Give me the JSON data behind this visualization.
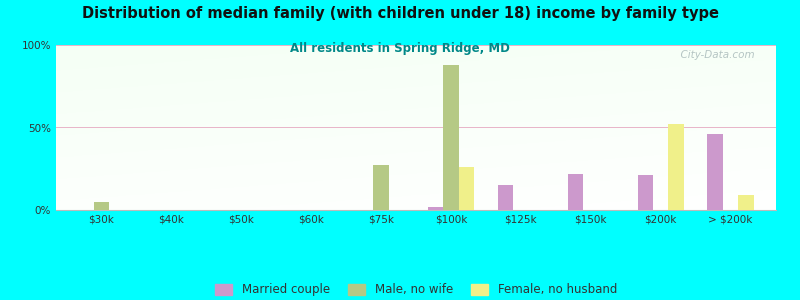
{
  "title": "Distribution of median family (with children under 18) income by family type",
  "subtitle": "All residents in Spring Ridge, MD",
  "background_color": "#00FFFF",
  "categories": [
    "$30k",
    "$40k",
    "$50k",
    "$60k",
    "$75k",
    "$100k",
    "$125k",
    "$150k",
    "$200k",
    "> $200k"
  ],
  "married_couple": [
    0,
    0,
    0,
    0,
    0,
    2,
    15,
    22,
    21,
    46
  ],
  "male_no_wife": [
    5,
    0,
    0,
    0,
    27,
    88,
    0,
    0,
    0,
    0
  ],
  "female_no_husband": [
    0,
    0,
    0,
    0,
    0,
    26,
    0,
    0,
    52,
    9
  ],
  "married_color": "#cc99cc",
  "male_color": "#b5c985",
  "female_color": "#f0f08a",
  "ylim": [
    0,
    100
  ],
  "yticks": [
    0,
    50,
    100
  ],
  "ytick_labels": [
    "0%",
    "50%",
    "100%"
  ],
  "grid_color": "#e8b4c8",
  "bar_width": 0.22,
  "legend_labels": [
    "Married couple",
    "Male, no wife",
    "Female, no husband"
  ],
  "title_color": "#111111",
  "subtitle_color": "#008888",
  "watermark": "  City-Data.com",
  "watermark_color": "#aabbbb"
}
